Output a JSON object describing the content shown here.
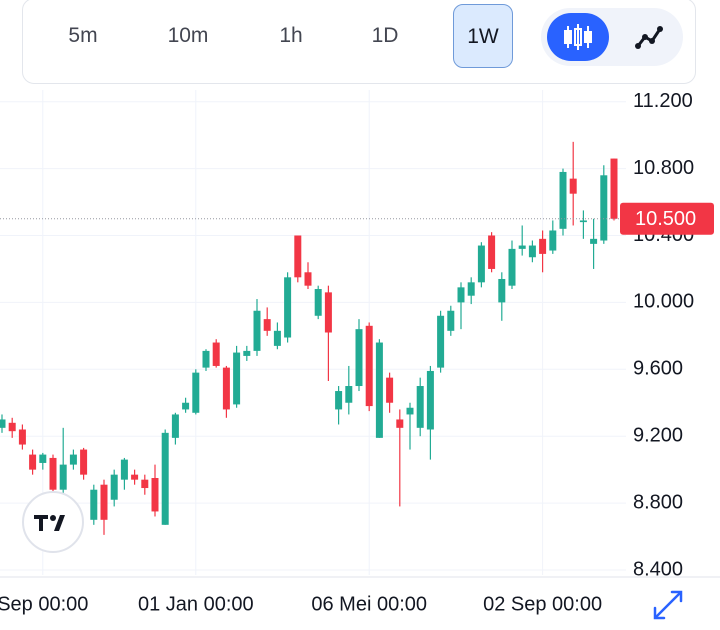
{
  "toolbar": {
    "intervals": [
      "5m",
      "10m",
      "1h",
      "1D",
      "1W"
    ],
    "selected_interval": "1W"
  },
  "chart_data": {
    "type": "candlestick",
    "up_color": "#22ab94",
    "down_color": "#f23645",
    "categories": [
      null,
      null,
      null,
      null,
      "Sep 00:00",
      null,
      null,
      null,
      null,
      null,
      null,
      null,
      null,
      null,
      null,
      null,
      null,
      null,
      null,
      "01 Jan 00:00",
      null,
      null,
      null,
      null,
      null,
      null,
      null,
      null,
      null,
      null,
      null,
      null,
      null,
      null,
      null,
      null,
      "06 Mei 00:00",
      null,
      null,
      null,
      null,
      null,
      null,
      null,
      null,
      null,
      null,
      null,
      null,
      null,
      null,
      null,
      null,
      "02 Sep 00:00",
      null,
      null,
      null,
      null,
      null,
      null,
      null
    ],
    "open": [
      9.25,
      9.28,
      9.24,
      9.09,
      9.04,
      9.07,
      8.88,
      9.03,
      9.12,
      8.7,
      8.91,
      8.82,
      8.94,
      8.97,
      8.94,
      8.95,
      8.67,
      9.19,
      9.36,
      9.34,
      9.61,
      9.76,
      9.61,
      9.39,
      9.68,
      9.71,
      9.9,
      9.74,
      9.79,
      10.4,
      10.18,
      9.92,
      10.06,
      9.36,
      9.4,
      9.5,
      9.86,
      9.19,
      9.55,
      9.3,
      9.33,
      9.25,
      9.24,
      9.61,
      9.83,
      10.0,
      10.04,
      10.12,
      10.4,
      10.0,
      10.1,
      10.32,
      10.27,
      10.38,
      10.31,
      10.44,
      10.74,
      10.48,
      10.35,
      10.37,
      10.86
    ],
    "high": [
      9.33,
      9.31,
      9.27,
      9.12,
      9.1,
      9.09,
      9.25,
      9.12,
      9.13,
      8.91,
      8.94,
      9.0,
      9.07,
      9.0,
      8.97,
      9.03,
      9.24,
      9.34,
      9.43,
      9.6,
      9.72,
      9.78,
      9.62,
      9.74,
      9.74,
      10.02,
      9.97,
      9.88,
      10.18,
      10.4,
      10.24,
      10.1,
      10.1,
      9.5,
      9.62,
      9.9,
      9.88,
      9.78,
      9.58,
      9.36,
      9.4,
      9.55,
      9.62,
      9.95,
      9.98,
      10.12,
      10.15,
      10.36,
      10.42,
      10.18,
      10.37,
      10.46,
      10.37,
      10.43,
      10.49,
      10.8,
      10.96,
      10.55,
      10.5,
      10.82,
      10.86
    ],
    "low": [
      9.22,
      9.19,
      9.12,
      8.97,
      9.0,
      8.85,
      8.85,
      9.0,
      8.94,
      8.67,
      8.61,
      8.78,
      8.88,
      8.91,
      8.85,
      8.72,
      8.67,
      9.15,
      9.34,
      9.33,
      9.59,
      9.61,
      9.31,
      9.37,
      9.65,
      9.68,
      9.8,
      9.72,
      9.76,
      10.12,
      10.08,
      9.9,
      9.53,
      9.27,
      9.33,
      9.47,
      9.35,
      9.19,
      9.34,
      8.78,
      9.12,
      9.2,
      9.06,
      9.58,
      9.8,
      9.84,
      9.99,
      10.09,
      10.18,
      9.89,
      10.08,
      10.28,
      10.24,
      10.18,
      10.29,
      10.4,
      10.46,
      10.38,
      10.2,
      10.35,
      10.49
    ],
    "close": [
      9.3,
      9.23,
      9.15,
      9.0,
      9.09,
      8.88,
      9.03,
      9.09,
      8.97,
      8.88,
      8.7,
      8.97,
      9.06,
      8.94,
      8.89,
      8.75,
      9.22,
      9.33,
      9.4,
      9.58,
      9.71,
      9.62,
      9.36,
      9.7,
      9.71,
      9.95,
      9.83,
      9.83,
      10.15,
      10.15,
      10.1,
      10.08,
      9.82,
      9.47,
      9.5,
      9.84,
      9.38,
      9.76,
      9.4,
      9.25,
      9.37,
      9.5,
      9.59,
      9.92,
      9.95,
      10.09,
      10.12,
      10.34,
      10.2,
      10.14,
      10.32,
      10.34,
      10.34,
      10.29,
      10.43,
      10.78,
      10.65,
      10.49,
      10.38,
      10.76,
      10.5
    ],
    "last_value": {
      "value": 10.5,
      "label": "10.500"
    },
    "ylim": [
      8.37,
      11.27
    ],
    "yticks": [
      {
        "value": 8.4,
        "label": "8.400"
      },
      {
        "value": 8.8,
        "label": "8.800"
      },
      {
        "value": 9.2,
        "label": "9.200"
      },
      {
        "value": 9.6,
        "label": "9.600"
      },
      {
        "value": 10.0,
        "label": "10.000"
      },
      {
        "value": 10.4,
        "label": "10.400"
      },
      {
        "value": 10.8,
        "label": "10.800"
      },
      {
        "value": 11.2,
        "label": "11.200"
      }
    ],
    "grid": true
  }
}
